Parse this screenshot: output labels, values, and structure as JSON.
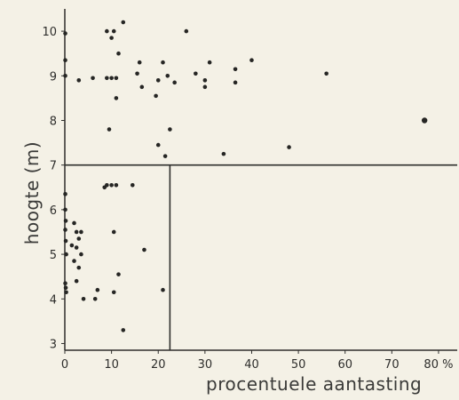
{
  "chart_data": {
    "type": "scatter",
    "title": "",
    "xlabel": "procentuele aantasting",
    "ylabel": "hoogte (m)",
    "xlim": [
      0,
      84
    ],
    "ylim": [
      2.85,
      10.5
    ],
    "x_ticks": [
      {
        "value": 0,
        "label": "0"
      },
      {
        "value": 10,
        "label": "10"
      },
      {
        "value": 20,
        "label": "20"
      },
      {
        "value": 30,
        "label": "30"
      },
      {
        "value": 40,
        "label": "40"
      },
      {
        "value": 50,
        "label": "50"
      },
      {
        "value": 60,
        "label": "60"
      },
      {
        "value": 70,
        "label": "70"
      },
      {
        "value": 80,
        "label": "80 %"
      }
    ],
    "y_ticks": [
      {
        "value": 3,
        "label": "3"
      },
      {
        "value": 4,
        "label": "4"
      },
      {
        "value": 5,
        "label": "5"
      },
      {
        "value": 6,
        "label": "6"
      },
      {
        "value": 7,
        "label": "7"
      },
      {
        "value": 8,
        "label": "8"
      },
      {
        "value": 9,
        "label": "9"
      },
      {
        "value": 10,
        "label": "10"
      }
    ],
    "reference_lines": {
      "y": 7.0,
      "x": 22.5
    },
    "grid": false,
    "points": [
      {
        "x": 0.1,
        "y": 9.95
      },
      {
        "x": 0.1,
        "y": 9.35
      },
      {
        "x": 0.1,
        "y": 9.0
      },
      {
        "x": 3.0,
        "y": 8.9
      },
      {
        "x": 6.0,
        "y": 8.95
      },
      {
        "x": 9.0,
        "y": 8.95
      },
      {
        "x": 9.0,
        "y": 10.0
      },
      {
        "x": 10.0,
        "y": 9.85
      },
      {
        "x": 10.5,
        "y": 10.0
      },
      {
        "x": 12.5,
        "y": 10.2
      },
      {
        "x": 11.5,
        "y": 9.5
      },
      {
        "x": 10.0,
        "y": 8.95
      },
      {
        "x": 11.0,
        "y": 8.95
      },
      {
        "x": 11.0,
        "y": 8.5
      },
      {
        "x": 9.5,
        "y": 7.8
      },
      {
        "x": 16.0,
        "y": 9.3
      },
      {
        "x": 15.5,
        "y": 9.05
      },
      {
        "x": 16.5,
        "y": 8.75
      },
      {
        "x": 19.5,
        "y": 8.55
      },
      {
        "x": 20.0,
        "y": 8.9
      },
      {
        "x": 21.0,
        "y": 9.3
      },
      {
        "x": 22.0,
        "y": 9.0
      },
      {
        "x": 23.5,
        "y": 8.85
      },
      {
        "x": 26.0,
        "y": 10.0
      },
      {
        "x": 28.0,
        "y": 9.05
      },
      {
        "x": 30.0,
        "y": 8.9
      },
      {
        "x": 30.0,
        "y": 8.75
      },
      {
        "x": 31.0,
        "y": 9.3
      },
      {
        "x": 36.5,
        "y": 9.15
      },
      {
        "x": 36.5,
        "y": 8.85
      },
      {
        "x": 40.0,
        "y": 9.35
      },
      {
        "x": 56.0,
        "y": 9.05
      },
      {
        "x": 77.0,
        "y": 8.0
      },
      {
        "x": 20.0,
        "y": 7.45
      },
      {
        "x": 22.5,
        "y": 7.8
      },
      {
        "x": 21.5,
        "y": 7.2
      },
      {
        "x": 34.0,
        "y": 7.25
      },
      {
        "x": 48.0,
        "y": 7.4
      },
      {
        "x": 0.1,
        "y": 6.35
      },
      {
        "x": 0.1,
        "y": 6.0
      },
      {
        "x": 0.2,
        "y": 5.75
      },
      {
        "x": 0.1,
        "y": 5.55
      },
      {
        "x": 0.2,
        "y": 5.3
      },
      {
        "x": 0.3,
        "y": 5.0
      },
      {
        "x": 0.1,
        "y": 4.35
      },
      {
        "x": 0.2,
        "y": 4.25
      },
      {
        "x": 0.3,
        "y": 4.15
      },
      {
        "x": 2.0,
        "y": 5.7
      },
      {
        "x": 2.5,
        "y": 5.5
      },
      {
        "x": 3.0,
        "y": 5.35
      },
      {
        "x": 3.5,
        "y": 5.5
      },
      {
        "x": 1.5,
        "y": 5.2
      },
      {
        "x": 2.5,
        "y": 5.15
      },
      {
        "x": 3.5,
        "y": 5.0
      },
      {
        "x": 2.0,
        "y": 4.85
      },
      {
        "x": 3.0,
        "y": 4.7
      },
      {
        "x": 2.5,
        "y": 4.4
      },
      {
        "x": 4.0,
        "y": 4.0
      },
      {
        "x": 6.5,
        "y": 4.0
      },
      {
        "x": 7.0,
        "y": 4.2
      },
      {
        "x": 8.5,
        "y": 6.5
      },
      {
        "x": 9.0,
        "y": 6.55
      },
      {
        "x": 10.0,
        "y": 6.55
      },
      {
        "x": 11.0,
        "y": 6.55
      },
      {
        "x": 14.5,
        "y": 6.55
      },
      {
        "x": 10.5,
        "y": 5.5
      },
      {
        "x": 17.0,
        "y": 5.1
      },
      {
        "x": 11.5,
        "y": 4.55
      },
      {
        "x": 10.5,
        "y": 4.15
      },
      {
        "x": 21.0,
        "y": 4.2
      },
      {
        "x": 12.5,
        "y": 3.3
      }
    ]
  }
}
